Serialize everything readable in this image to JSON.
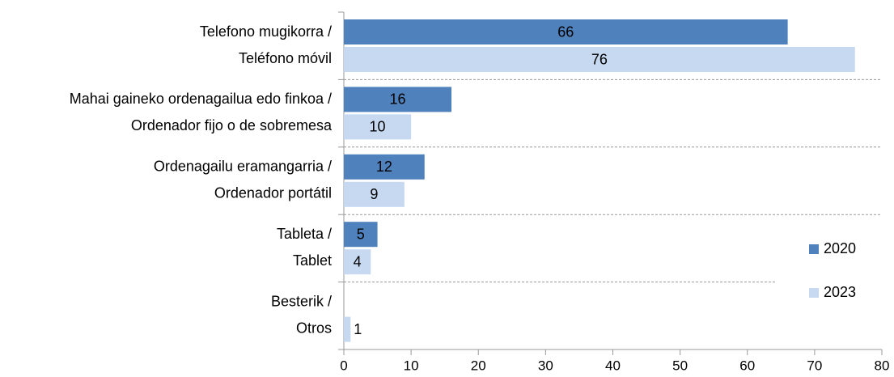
{
  "chart_data": {
    "type": "barh",
    "categories": [
      [
        "Telefono mugikorra /",
        "Teléfono móvil"
      ],
      [
        "Mahai gaineko ordenagailua edo finkoa /",
        "Ordenador fijo o de sobremesa"
      ],
      [
        "Ordenagailu eramangarria /",
        "Ordenador portátil"
      ],
      [
        "Tableta /",
        "Tablet"
      ],
      [
        "Besterik /",
        "Otros"
      ]
    ],
    "series": [
      {
        "name": "2020",
        "color": "#4f81bd",
        "label_color": "#ffffff",
        "values": [
          66,
          16,
          12,
          5,
          null
        ]
      },
      {
        "name": "2023",
        "color": "#c6d9f1",
        "label_color": "#000000",
        "values": [
          76,
          10,
          9,
          4,
          1
        ]
      }
    ],
    "xlim": [
      0,
      80
    ],
    "xticks": [
      0,
      10,
      20,
      30,
      40,
      50,
      60,
      70,
      80
    ],
    "legend": "right"
  }
}
